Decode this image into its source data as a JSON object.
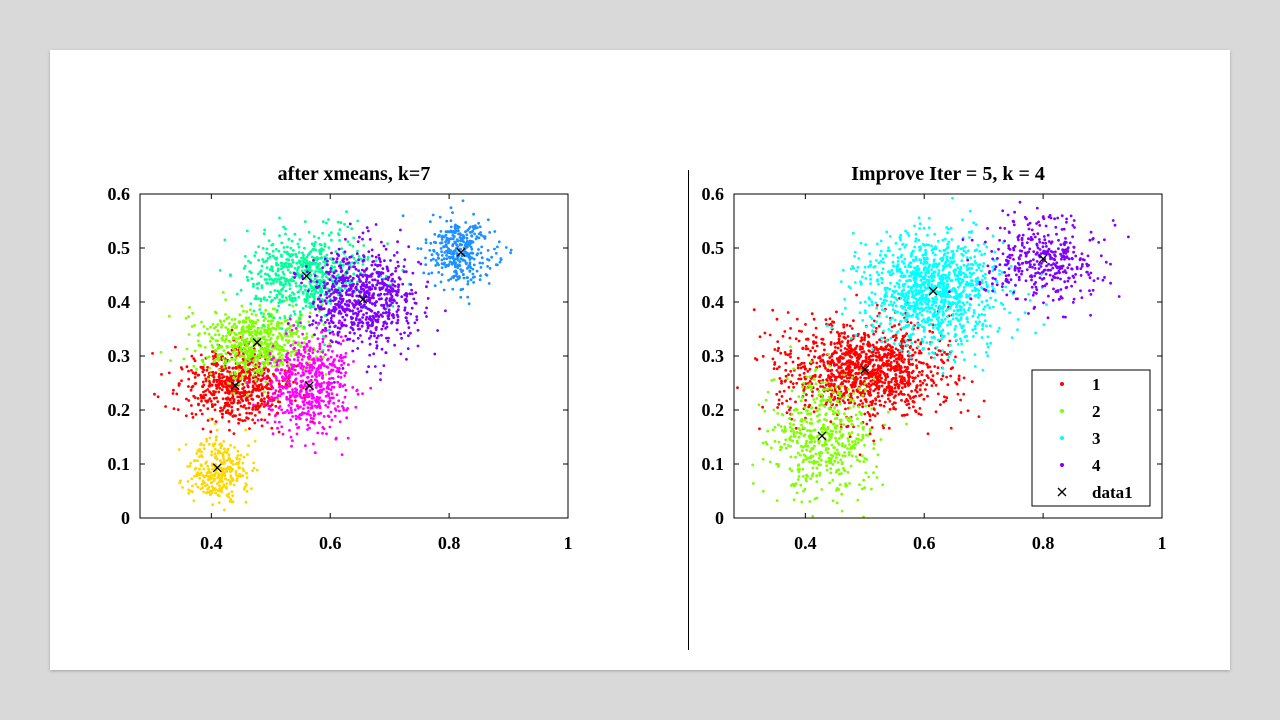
{
  "colors": {
    "page_background": "#d9d9d9",
    "slide_background": "#ffffff",
    "cluster_red": "#ff0000",
    "cluster_green": "#7fff00",
    "cluster_cyan": "#00ffff",
    "cluster_purple": "#8000ff",
    "cluster_yellow": "#ffd700",
    "cluster_magenta": "#ff00ff",
    "cluster_spring": "#00ff99",
    "cluster_blue": "#1e90ff",
    "centroid": "#000000"
  },
  "chart_data": [
    {
      "type": "scatter",
      "title": "after xmeans, k=7",
      "xlabel": "",
      "ylabel": "",
      "xlim": [
        0.28,
        1.0
      ],
      "ylim": [
        0,
        0.6
      ],
      "xticks": [
        "0.4",
        "0.6",
        "0.8",
        "1"
      ],
      "xtick_values": [
        0.4,
        0.6,
        0.8,
        1.0
      ],
      "yticks": [
        "0",
        "0.1",
        "0.2",
        "0.3",
        "0.4",
        "0.5",
        "0.6"
      ],
      "ytick_values": [
        0,
        0.1,
        0.2,
        0.3,
        0.4,
        0.5,
        0.6
      ],
      "grid": false,
      "legend": null,
      "clusters": [
        {
          "color": "#ff0000",
          "center": [
            0.44,
            0.245
          ],
          "spread": [
            0.045,
            0.035
          ],
          "points": 650
        },
        {
          "color": "#7fff00",
          "center": [
            0.475,
            0.325
          ],
          "spread": [
            0.05,
            0.035
          ],
          "points": 600
        },
        {
          "color": "#00ff99",
          "center": [
            0.56,
            0.45
          ],
          "spread": [
            0.05,
            0.04
          ],
          "points": 650
        },
        {
          "color": "#8000ff",
          "center": [
            0.655,
            0.405
          ],
          "spread": [
            0.045,
            0.045
          ],
          "points": 750
        },
        {
          "color": "#ff00ff",
          "center": [
            0.565,
            0.245
          ],
          "spread": [
            0.035,
            0.045
          ],
          "points": 550
        },
        {
          "color": "#ffd700",
          "center": [
            0.41,
            0.09
          ],
          "spread": [
            0.025,
            0.03
          ],
          "points": 300
        },
        {
          "color": "#1e90ff",
          "center": [
            0.82,
            0.49
          ],
          "spread": [
            0.03,
            0.03
          ],
          "points": 350
        }
      ],
      "centroids": [
        [
          0.44,
          0.245
        ],
        [
          0.477,
          0.325
        ],
        [
          0.56,
          0.448
        ],
        [
          0.655,
          0.405
        ],
        [
          0.565,
          0.245
        ],
        [
          0.41,
          0.093
        ],
        [
          0.82,
          0.492
        ]
      ]
    },
    {
      "type": "scatter",
      "title": "Improve Iter = 5, k = 4",
      "xlabel": "",
      "ylabel": "",
      "xlim": [
        0.28,
        1.0
      ],
      "ylim": [
        0,
        0.6
      ],
      "xticks": [
        "0.4",
        "0.6",
        "0.8",
        "1"
      ],
      "xtick_values": [
        0.4,
        0.6,
        0.8,
        1.0
      ],
      "yticks": [
        "0",
        "0.1",
        "0.2",
        "0.3",
        "0.4",
        "0.5",
        "0.6"
      ],
      "ytick_values": [
        0,
        0.1,
        0.2,
        0.3,
        0.4,
        0.5,
        0.6
      ],
      "grid": false,
      "legend": {
        "placement": "bottom-right",
        "entries": [
          {
            "label": "1",
            "marker": "dot",
            "color": "#ff0000"
          },
          {
            "label": "2",
            "marker": "dot",
            "color": "#7fff00"
          },
          {
            "label": "3",
            "marker": "dot",
            "color": "#00ffff"
          },
          {
            "label": "4",
            "marker": "dot",
            "color": "#8000ff"
          },
          {
            "label": "data1",
            "marker": "x",
            "color": "#000000"
          }
        ]
      },
      "clusters": [
        {
          "color": "#ff0000",
          "center": [
            0.5,
            0.275
          ],
          "spread": [
            0.07,
            0.045
          ],
          "points": 1200
        },
        {
          "color": "#7fff00",
          "center": [
            0.43,
            0.15
          ],
          "spread": [
            0.045,
            0.06
          ],
          "points": 500
        },
        {
          "color": "#00ffff",
          "center": [
            0.615,
            0.42
          ],
          "spread": [
            0.06,
            0.05
          ],
          "points": 1150
        },
        {
          "color": "#8000ff",
          "center": [
            0.8,
            0.48
          ],
          "spread": [
            0.05,
            0.04
          ],
          "points": 400
        }
      ],
      "centroids": [
        [
          0.5,
          0.275
        ],
        [
          0.428,
          0.152
        ],
        [
          0.615,
          0.42
        ],
        [
          0.8,
          0.48
        ]
      ]
    }
  ]
}
